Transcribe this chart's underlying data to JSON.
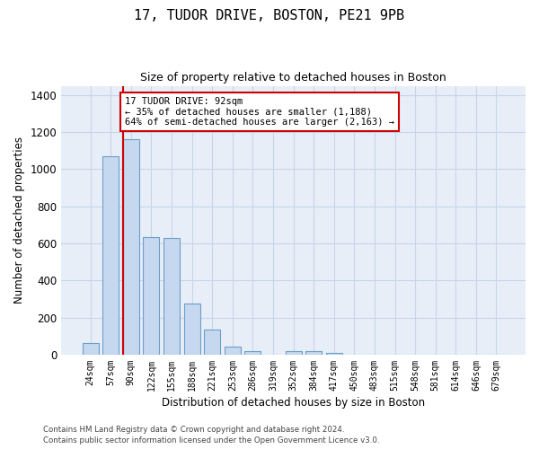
{
  "title_line1": "17, TUDOR DRIVE, BOSTON, PE21 9PB",
  "title_line2": "Size of property relative to detached houses in Boston",
  "xlabel": "Distribution of detached houses by size in Boston",
  "ylabel": "Number of detached properties",
  "categories": [
    "24sqm",
    "57sqm",
    "90sqm",
    "122sqm",
    "155sqm",
    "188sqm",
    "221sqm",
    "253sqm",
    "286sqm",
    "319sqm",
    "352sqm",
    "384sqm",
    "417sqm",
    "450sqm",
    "483sqm",
    "515sqm",
    "548sqm",
    "581sqm",
    "614sqm",
    "646sqm",
    "679sqm"
  ],
  "values": [
    65,
    1070,
    1160,
    635,
    630,
    275,
    135,
    45,
    20,
    0,
    20,
    20,
    10,
    0,
    0,
    0,
    0,
    0,
    0,
    0,
    0
  ],
  "bar_color": "#c5d8f0",
  "bar_edge_color": "#6a9fc8",
  "subject_bar_index": 2,
  "subject_line_color": "#cc0000",
  "annotation_line1": "17 TUDOR DRIVE: 92sqm",
  "annotation_line2": "← 35% of detached houses are smaller (1,188)",
  "annotation_line3": "64% of semi-detached houses are larger (2,163) →",
  "annotation_box_edgecolor": "#cc0000",
  "annotation_box_facecolor": "white",
  "ylim": [
    0,
    1450
  ],
  "yticks": [
    0,
    200,
    400,
    600,
    800,
    1000,
    1200,
    1400
  ],
  "grid_color": "#c8d4e8",
  "bg_color": "#e8eef8",
  "footer_line1": "Contains HM Land Registry data © Crown copyright and database right 2024.",
  "footer_line2": "Contains public sector information licensed under the Open Government Licence v3.0."
}
